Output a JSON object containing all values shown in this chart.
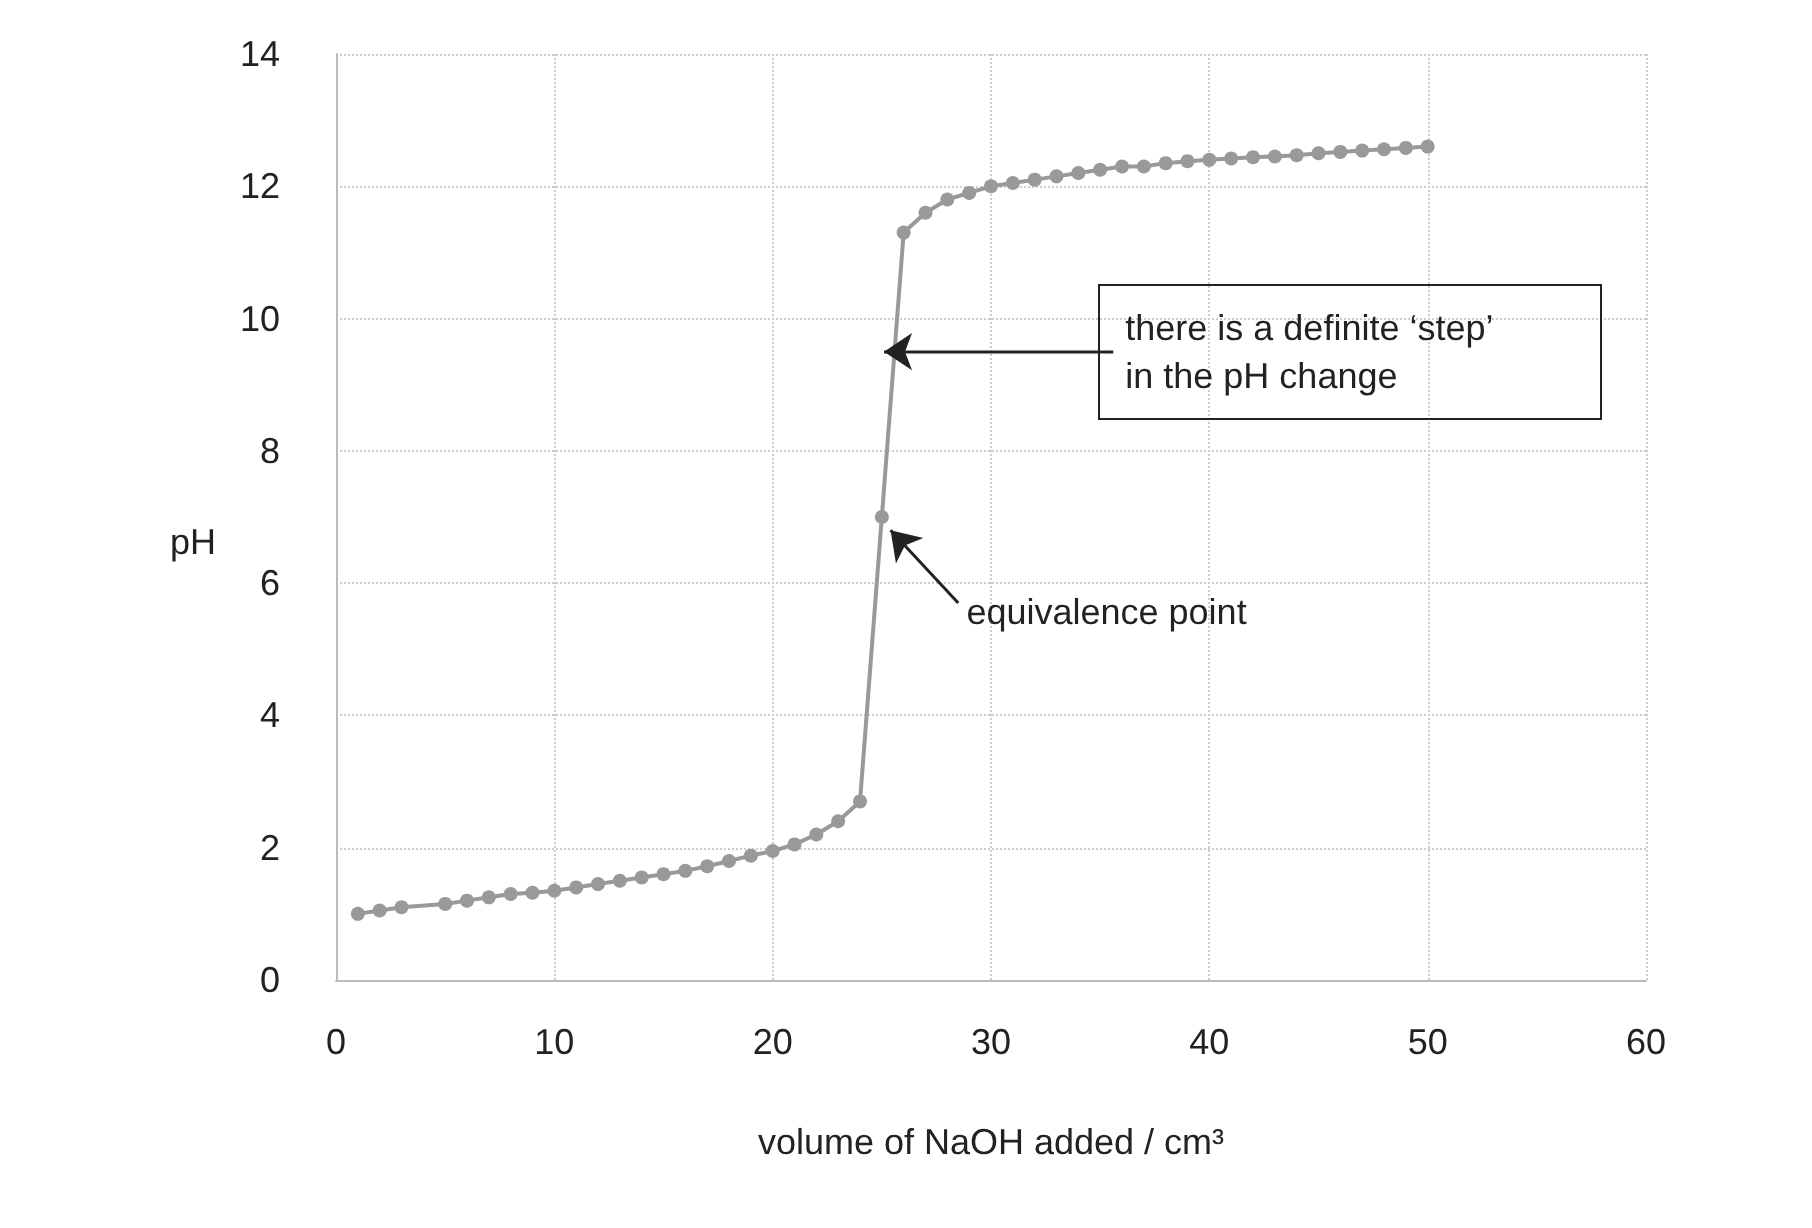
{
  "chart_data": {
    "type": "line",
    "xlabel": "volume of NaOH added / cm³",
    "ylabel": "pH",
    "xlim": [
      0,
      60
    ],
    "xticks": [
      0,
      10,
      20,
      30,
      40,
      50,
      60
    ],
    "ylim": [
      0,
      14
    ],
    "yticks": [
      0,
      2,
      4,
      6,
      8,
      10,
      12,
      14
    ],
    "grid": true,
    "marker": "circle",
    "line_style": "solid",
    "series": [
      {
        "color": "#999999",
        "x": [
          1,
          2,
          3,
          5,
          6,
          7,
          8,
          9,
          10,
          11,
          12,
          13,
          14,
          15,
          16,
          17,
          18,
          19,
          20,
          21,
          22,
          23,
          24,
          25,
          26,
          27,
          28,
          29,
          30,
          31,
          32,
          33,
          34,
          35,
          36,
          37,
          38,
          39,
          40,
          41,
          42,
          43,
          44,
          45,
          46,
          47,
          48,
          49,
          50
        ],
        "values": [
          1.0,
          1.05,
          1.1,
          1.15,
          1.2,
          1.25,
          1.3,
          1.32,
          1.35,
          1.4,
          1.45,
          1.5,
          1.55,
          1.6,
          1.65,
          1.72,
          1.8,
          1.88,
          1.95,
          2.05,
          2.2,
          2.4,
          2.7,
          7.0,
          11.3,
          11.6,
          11.8,
          11.9,
          12.0,
          12.05,
          12.1,
          12.15,
          12.2,
          12.25,
          12.3,
          12.3,
          12.35,
          12.38,
          12.4,
          12.42,
          12.44,
          12.45,
          12.47,
          12.5,
          12.52,
          12.54,
          12.56,
          12.58,
          12.6
        ]
      }
    ],
    "annotations": [
      {
        "text": "there is a definite ‘step’ in the pH change",
        "x": 25.6,
        "y": 9.5
      },
      {
        "text": "equivalence point",
        "x": 25,
        "y": 7
      }
    ]
  }
}
